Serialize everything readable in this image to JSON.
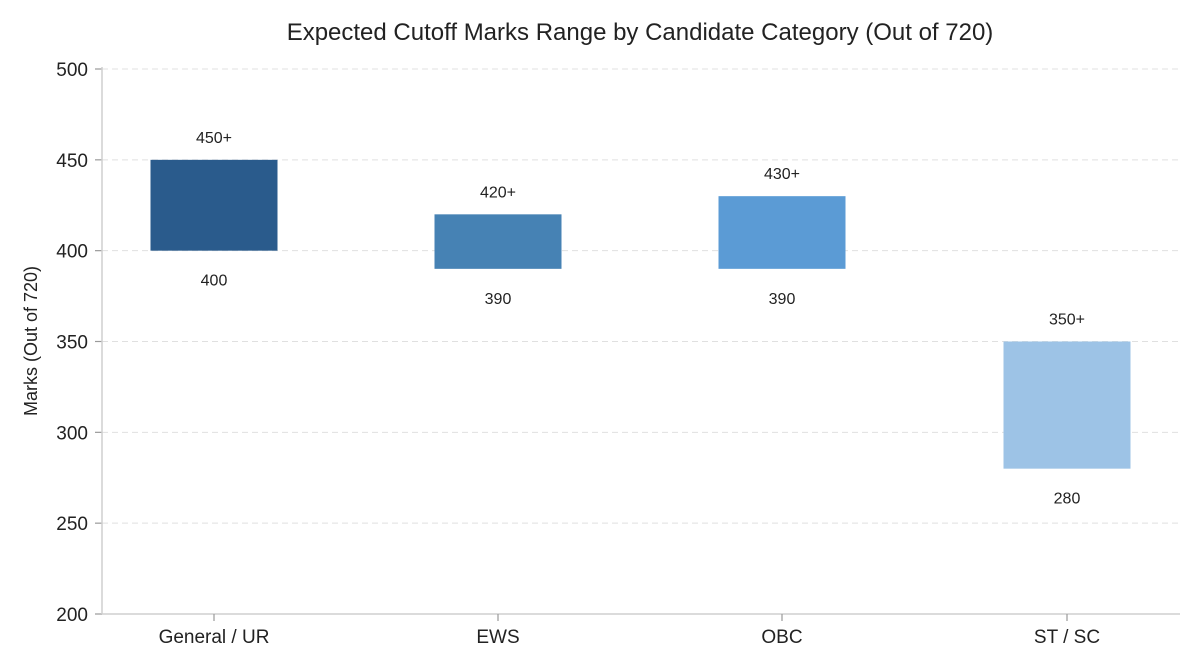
{
  "chart_data": {
    "type": "bar",
    "subtype": "floating-range",
    "title": "Expected Cutoff Marks Range by Candidate Category (Out of 720)",
    "xlabel": "",
    "ylabel": "Marks (Out of 720)",
    "ylim": [
      200,
      500
    ],
    "yticks": [
      200,
      250,
      300,
      350,
      400,
      450,
      500
    ],
    "grid": true,
    "categories": [
      "General / UR",
      "EWS",
      "OBC",
      "ST / SC"
    ],
    "ranges": [
      {
        "low": 400,
        "high": 450,
        "low_label": "400",
        "high_label": "450+",
        "color": "#2a5b8c"
      },
      {
        "low": 390,
        "high": 420,
        "low_label": "390",
        "high_label": "420+",
        "color": "#4682b4"
      },
      {
        "low": 390,
        "high": 430,
        "low_label": "390",
        "high_label": "430+",
        "color": "#5b9bd5"
      },
      {
        "low": 280,
        "high": 350,
        "low_label": "280",
        "high_label": "350+",
        "color": "#9dc3e6"
      }
    ]
  }
}
